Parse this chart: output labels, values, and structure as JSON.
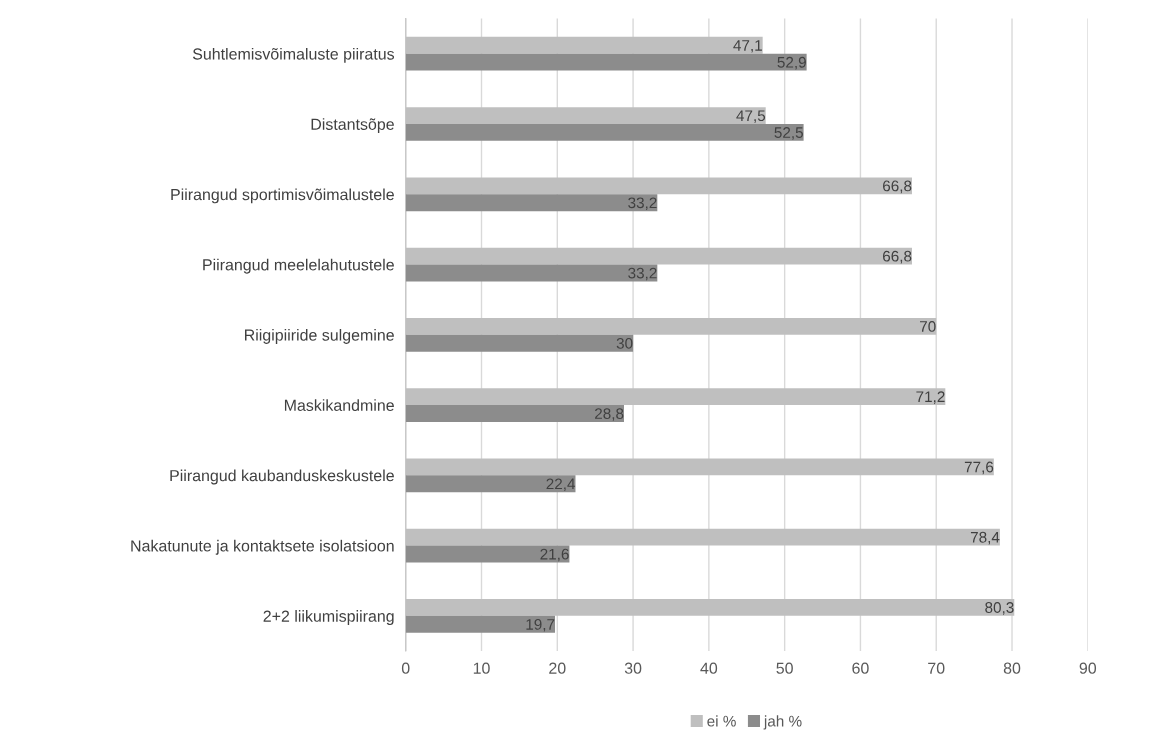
{
  "chart_data": {
    "type": "bar",
    "orientation": "horizontal",
    "categories": [
      "Suhtlemisvõimaluste piiratus",
      "Distantsõpe",
      "Piirangud sportimisvõimalustele",
      "Piirangud meelelahutustele",
      "Riigipiiride sulgemine",
      "Maskikandmine",
      "Piirangud kaubanduskeskustele",
      "Nakatunute ja kontaktsete isolatsioon",
      "2+2 liikumispiirang"
    ],
    "series": [
      {
        "name": "ei %",
        "color": "#bfbfbf",
        "values": [
          47.1,
          47.5,
          66.8,
          66.8,
          70,
          71.2,
          77.6,
          78.4,
          80.3
        ],
        "value_labels": [
          "47,1",
          "47,5",
          "66,8",
          "66,8",
          "70",
          "71,2",
          "77,6",
          "78,4",
          "80,3"
        ]
      },
      {
        "name": "jah %",
        "color": "#8c8c8c",
        "values": [
          52.9,
          52.5,
          33.2,
          33.2,
          30,
          28.8,
          22.4,
          21.6,
          19.7
        ],
        "value_labels": [
          "52,9",
          "52,5",
          "33,2",
          "33,2",
          "30",
          "28,8",
          "22,4",
          "21,6",
          "19,7"
        ]
      }
    ],
    "xlim": [
      0,
      90
    ],
    "xticks": [
      0,
      10,
      20,
      30,
      40,
      50,
      60,
      70,
      80,
      90
    ],
    "grid": "x",
    "legend": "bottom"
  }
}
